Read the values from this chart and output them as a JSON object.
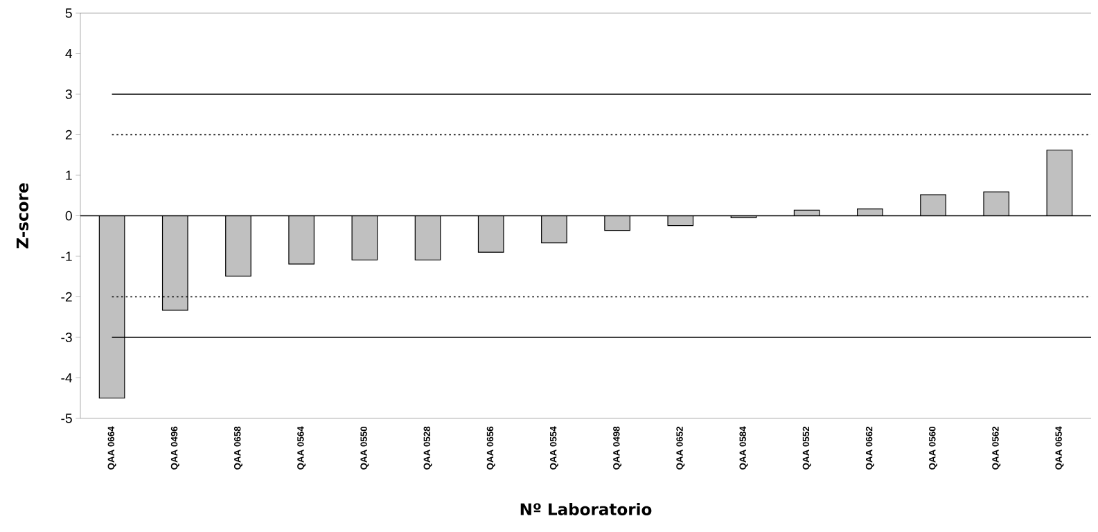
{
  "chart_data": {
    "type": "bar",
    "xlabel": "Nº Laboratorio",
    "ylabel": "Z-score",
    "categories": [
      "QAA 0664",
      "QAA 0496",
      "QAA 0658",
      "QAA 0564",
      "QAA 0550",
      "QAA 0528",
      "QAA 0656",
      "QAA 0554",
      "QAA 0498",
      "QAA 0652",
      "QAA 0584",
      "QAA 0552",
      "QAA 0662",
      "QAA 0560",
      "QAA 0562",
      "QAA 0654"
    ],
    "values": [
      -4.5,
      -2.33,
      -1.49,
      -1.19,
      -1.09,
      -1.09,
      -0.9,
      -0.67,
      -0.36,
      -0.24,
      -0.05,
      0.14,
      0.17,
      0.52,
      0.59,
      1.62
    ],
    "color": "#c0c0c0",
    "ylim": [
      -5,
      5
    ],
    "yticks": [
      -5,
      -4,
      -3,
      -2,
      -1,
      0,
      1,
      2,
      3,
      4,
      5
    ],
    "grid": false,
    "ref_lines": [
      {
        "axis": "y",
        "value": 3,
        "line_style": "solid"
      },
      {
        "axis": "y",
        "value": 2,
        "line_style": "dotted"
      },
      {
        "axis": "y",
        "value": 0,
        "line_style": "solid"
      },
      {
        "axis": "y",
        "value": -2,
        "line_style": "dotted"
      },
      {
        "axis": "y",
        "value": -3,
        "line_style": "solid"
      }
    ]
  }
}
